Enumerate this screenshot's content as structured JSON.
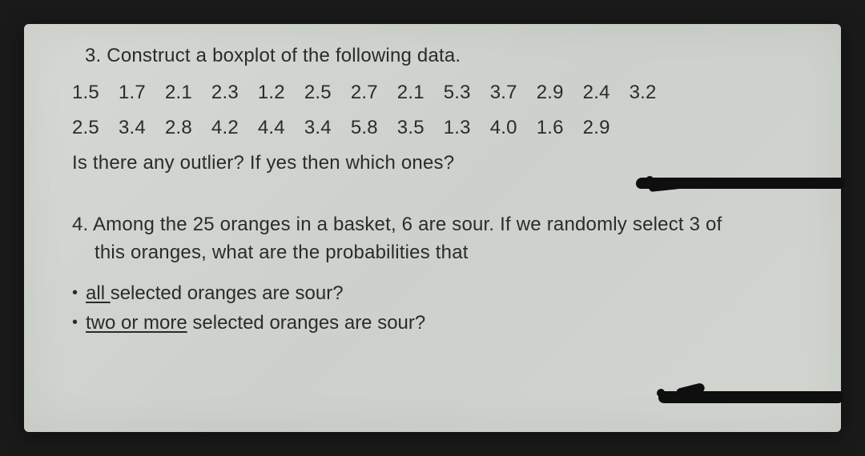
{
  "q3": {
    "number": "3.",
    "title": "Construct a boxplot of the following data.",
    "row1": [
      "1.5",
      "1.7",
      "2.1",
      "2.3",
      "1.2",
      "2.5",
      "2.7",
      "2.1",
      "5.3",
      "3.7",
      "2.9",
      "2.4",
      "3.2"
    ],
    "row2": [
      "2.5",
      "3.4",
      "2.8",
      "4.2",
      "4.4",
      "3.4",
      "5.8",
      "3.5",
      "1.3",
      "4.0",
      "1.6",
      "2.9"
    ],
    "ask": "Is there any outlier? If yes then which ones?"
  },
  "q4": {
    "number": "4.",
    "line1": "Among the 25 oranges in a basket, 6 are sour. If we randomly select 3 of",
    "line2": "this oranges, what are the probabilities that",
    "bullets": [
      {
        "underlined": "all ",
        "rest": "selected oranges are sour?"
      },
      {
        "underlined": "two or more",
        "rest": " selected oranges are sour?"
      }
    ]
  },
  "style": {
    "paper_bg": "#d3d6d0",
    "text_color": "#2a2c2a",
    "font_size_pt": 18,
    "scribble_color": "#0e0f0e"
  }
}
